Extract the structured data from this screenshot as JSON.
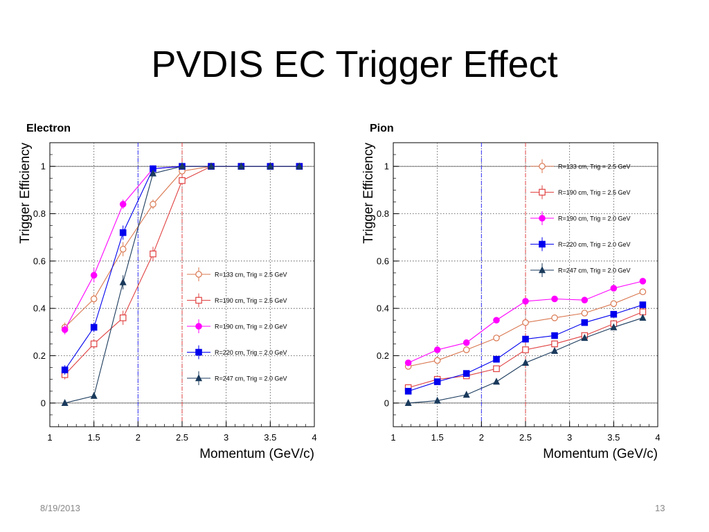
{
  "slide": {
    "title": "PVDIS EC Trigger Effect",
    "date": "8/19/2013",
    "page_number": "13"
  },
  "chart_data": [
    {
      "type": "line",
      "title": "Electron",
      "xlabel": "Momentum (GeV/c)",
      "ylabel": "Trigger Efficiency",
      "xlim": [
        1,
        4
      ],
      "ylim": [
        -0.1,
        1.1
      ],
      "xticks": [
        "1",
        "1.5",
        "2",
        "2.5",
        "3",
        "3.5",
        "4"
      ],
      "yticks": [
        "0",
        "0.2",
        "0.4",
        "0.6",
        "0.8",
        "1"
      ],
      "grid": true,
      "reference_lines": [
        {
          "x": 2.0,
          "color": "#3333ff"
        },
        {
          "x": 2.5,
          "color": "#e04040"
        }
      ],
      "legend_position": "bottom-right",
      "series": [
        {
          "name": "R=133 cm, Trig = 2.5 GeV",
          "color": "#d9764e",
          "marker": "open-circle",
          "x": [
            1.17,
            1.5,
            1.83,
            2.17,
            2.5,
            2.83,
            3.17,
            3.5,
            3.83
          ],
          "y": [
            0.32,
            0.44,
            0.65,
            0.84,
            0.98,
            1.0,
            1.0,
            1.0,
            1.0
          ],
          "err": [
            0.02,
            0.02,
            0.03,
            0.02,
            0.01,
            0,
            0,
            0,
            0
          ]
        },
        {
          "name": "R=190 cm, Trig = 2.5 GeV",
          "color": "#e04040",
          "marker": "open-square",
          "x": [
            1.17,
            1.5,
            1.83,
            2.17,
            2.5,
            2.83,
            3.17,
            3.5,
            3.83
          ],
          "y": [
            0.12,
            0.25,
            0.36,
            0.63,
            0.94,
            1.0,
            1.0,
            1.0,
            1.0
          ],
          "err": [
            0.02,
            0.02,
            0.03,
            0.03,
            0.01,
            0,
            0,
            0,
            0
          ]
        },
        {
          "name": "R=190 cm, Trig = 2.0 GeV",
          "color": "#ff00ff",
          "marker": "filled-circle",
          "x": [
            1.17,
            1.5,
            1.83,
            2.17,
            2.5,
            2.83,
            3.17,
            3.5,
            3.83
          ],
          "y": [
            0.31,
            0.54,
            0.84,
            0.99,
            1.0,
            1.0,
            1.0,
            1.0,
            1.0
          ],
          "err": [
            0.02,
            0.03,
            0.02,
            0.01,
            0,
            0,
            0,
            0,
            0
          ]
        },
        {
          "name": "R=220 cm, Trig = 2.0 GeV",
          "color": "#0000ee",
          "marker": "filled-square",
          "x": [
            1.17,
            1.5,
            1.83,
            2.17,
            2.5,
            2.83,
            3.17,
            3.5,
            3.83
          ],
          "y": [
            0.14,
            0.32,
            0.72,
            0.99,
            1.0,
            1.0,
            1.0,
            1.0,
            1.0
          ],
          "err": [
            0.02,
            0.02,
            0.03,
            0.01,
            0,
            0,
            0,
            0,
            0
          ]
        },
        {
          "name": "R=247 cm, Trig = 2.0 GeV",
          "color": "#1a3a5c",
          "marker": "filled-triangle",
          "x": [
            1.17,
            1.5,
            1.83,
            2.17,
            2.5,
            2.83,
            3.17,
            3.5,
            3.83
          ],
          "y": [
            0.0,
            0.03,
            0.51,
            0.97,
            1.0,
            1.0,
            1.0,
            1.0,
            1.0
          ],
          "err": [
            0,
            0.01,
            0.03,
            0.01,
            0,
            0,
            0,
            0,
            0
          ]
        }
      ]
    },
    {
      "type": "line",
      "title": "Pion",
      "xlabel": "Momentum (GeV/c)",
      "ylabel": "Trigger Efficiency",
      "xlim": [
        1,
        4
      ],
      "ylim": [
        -0.1,
        1.1
      ],
      "xticks": [
        "1",
        "1.5",
        "2",
        "2.5",
        "3",
        "3.5",
        "4"
      ],
      "yticks": [
        "0",
        "0.2",
        "0.4",
        "0.6",
        "0.8",
        "1"
      ],
      "grid": true,
      "reference_lines": [
        {
          "x": 2.0,
          "color": "#3333ff"
        },
        {
          "x": 2.5,
          "color": "#e04040"
        }
      ],
      "legend_position": "top-right",
      "series": [
        {
          "name": "R=133 cm, Trig = 2.5 GeV",
          "color": "#d9764e",
          "marker": "open-circle",
          "x": [
            1.17,
            1.5,
            1.83,
            2.17,
            2.5,
            2.83,
            3.17,
            3.5,
            3.83
          ],
          "y": [
            0.155,
            0.18,
            0.225,
            0.275,
            0.34,
            0.36,
            0.38,
            0.42,
            0.47
          ],
          "err": [
            0.01,
            0.01,
            0.01,
            0.01,
            0.01,
            0.01,
            0.01,
            0.01,
            0.01
          ]
        },
        {
          "name": "R=190 cm, Trig = 2.5 GeV",
          "color": "#e04040",
          "marker": "open-square",
          "x": [
            1.17,
            1.5,
            1.83,
            2.17,
            2.5,
            2.83,
            3.17,
            3.5,
            3.83
          ],
          "y": [
            0.065,
            0.1,
            0.115,
            0.145,
            0.225,
            0.25,
            0.285,
            0.335,
            0.385
          ],
          "err": [
            0.01,
            0.01,
            0.01,
            0.01,
            0.01,
            0.01,
            0.01,
            0.01,
            0.01
          ]
        },
        {
          "name": "R=190 cm, Trig = 2.0 GeV",
          "color": "#ff00ff",
          "marker": "filled-circle",
          "x": [
            1.17,
            1.5,
            1.83,
            2.17,
            2.5,
            2.83,
            3.17,
            3.5,
            3.83
          ],
          "y": [
            0.17,
            0.225,
            0.255,
            0.35,
            0.43,
            0.44,
            0.435,
            0.485,
            0.515
          ],
          "err": [
            0.01,
            0.01,
            0.01,
            0.01,
            0.01,
            0.01,
            0.01,
            0.01,
            0.01
          ]
        },
        {
          "name": "R=220 cm, Trig = 2.0 GeV",
          "color": "#0000ee",
          "marker": "filled-square",
          "x": [
            1.17,
            1.5,
            1.83,
            2.17,
            2.5,
            2.83,
            3.17,
            3.5,
            3.83
          ],
          "y": [
            0.05,
            0.09,
            0.125,
            0.185,
            0.27,
            0.285,
            0.34,
            0.375,
            0.415
          ],
          "err": [
            0.01,
            0.01,
            0.01,
            0.01,
            0.01,
            0.01,
            0.01,
            0.01,
            0.01
          ]
        },
        {
          "name": "R=247 cm, Trig = 2.0 GeV",
          "color": "#1a3a5c",
          "marker": "filled-triangle",
          "x": [
            1.17,
            1.5,
            1.83,
            2.17,
            2.5,
            2.83,
            3.17,
            3.5,
            3.83
          ],
          "y": [
            0.0,
            0.01,
            0.035,
            0.09,
            0.17,
            0.22,
            0.275,
            0.32,
            0.36
          ],
          "err": [
            0,
            0.005,
            0.005,
            0.01,
            0.01,
            0.01,
            0.01,
            0.01,
            0.01
          ]
        }
      ]
    }
  ]
}
